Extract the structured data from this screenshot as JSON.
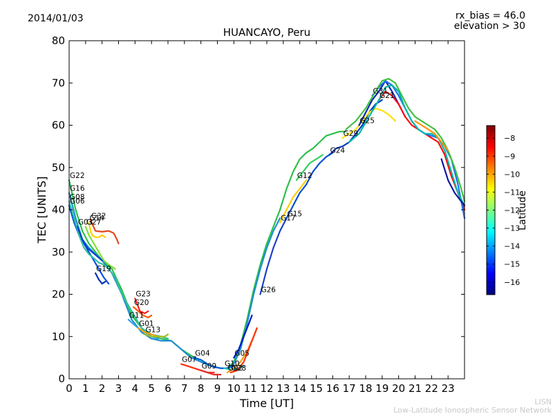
{
  "header": {
    "date": "2014/01/03",
    "params": [
      "rx_bias = 46.0",
      "elevation > 30"
    ]
  },
  "footer": {
    "watermark_short": "LISN",
    "watermark_long": "Low-Latitude Ionospheric Sensor Network"
  },
  "chart_data": {
    "type": "line",
    "title": "HUANCAYO, Peru",
    "xlabel": "Time [UT]",
    "ylabel": "TEC [UNITS]",
    "xlim": [
      0,
      24
    ],
    "ylim": [
      0,
      80
    ],
    "xticks": [
      0,
      1,
      2,
      3,
      4,
      5,
      6,
      7,
      8,
      9,
      10,
      11,
      12,
      13,
      14,
      15,
      16,
      17,
      18,
      19,
      20,
      21,
      22,
      23
    ],
    "yticks": [
      0,
      10,
      20,
      30,
      40,
      50,
      60,
      70,
      80
    ],
    "grid": false,
    "colorbar": {
      "label": "Latitude",
      "range": [
        -16.7,
        -7.3
      ],
      "ticks": [
        -8,
        -9,
        -10,
        -11,
        -12,
        -13,
        -14,
        -15,
        -16
      ],
      "colormap": [
        "#00007f",
        "#0000ff",
        "#007fff",
        "#00ffff",
        "#7fff7f",
        "#ffff00",
        "#ff7f00",
        "#ff0000",
        "#7f0000"
      ]
    },
    "series": [
      {
        "name": "G22",
        "color": "#2bbf4a",
        "x": [
          0.0,
          0.4,
          0.8,
          1.2,
          1.6,
          2.0,
          2.6,
          3.2,
          3.8,
          4.4,
          5.0,
          5.6,
          6.2,
          6.8,
          7.4,
          8.0,
          8.6,
          9.2,
          9.6,
          10.0,
          10.4,
          10.8,
          11.2,
          11.6,
          12.0,
          12.4,
          12.8,
          13.2,
          13.6,
          14.0,
          14.4,
          14.8,
          15.2,
          15.6,
          16.0,
          16.4,
          16.8
        ],
        "y": [
          47,
          40,
          35,
          32,
          30,
          28,
          26,
          21,
          15,
          12,
          10,
          9.5,
          9,
          7,
          5.5,
          4,
          3,
          2.5,
          2.5,
          4,
          8,
          14,
          21,
          27,
          32,
          36,
          40,
          45,
          49,
          52,
          53.5,
          54.5,
          56,
          57.5,
          58,
          58.5,
          58.5
        ]
      },
      {
        "name": "G16",
        "color": "#1f8fd0",
        "x": [
          0.0,
          0.4,
          0.8,
          1.2,
          1.6,
          2.0,
          2.6,
          3.2,
          3.8,
          4.4,
          5.0,
          5.6,
          6.2,
          6.8,
          7.4,
          8.0,
          8.6,
          9.2,
          9.6,
          10.0,
          10.4,
          10.8,
          11.2,
          11.6,
          12.0,
          12.4,
          12.8
        ],
        "y": [
          44,
          38,
          33,
          31,
          29.5,
          28,
          25,
          20,
          14,
          11,
          9.5,
          9,
          9,
          7,
          5,
          4,
          3,
          2.5,
          2.5,
          3.5,
          7,
          13,
          20,
          26,
          31,
          35,
          38
        ]
      },
      {
        "name": "G06",
        "color": "#0050e0",
        "x": [
          0.0,
          0.3,
          0.6,
          0.9,
          1.2,
          1.5,
          1.8,
          2.1,
          2.4
        ],
        "y": [
          41,
          37,
          34,
          32,
          30,
          28,
          26,
          24,
          22.5
        ]
      },
      {
        "name": "G08",
        "color": "#30c0a0",
        "x": [
          0.0,
          0.3,
          0.6,
          0.9,
          1.2,
          1.5,
          1.8,
          2.1,
          2.4,
          2.8,
          3.2,
          3.8,
          4.4,
          5.0,
          5.6,
          6.0
        ],
        "y": [
          42,
          38,
          34,
          31,
          29.5,
          28.5,
          27.5,
          27,
          26,
          24,
          20,
          16,
          12,
          10.5,
          10,
          9.5
        ]
      },
      {
        "name": "G27",
        "color": "#7de035",
        "x": [
          1.0,
          1.2,
          1.5,
          1.8,
          2.1,
          2.4,
          2.8
        ],
        "y": [
          36,
          34,
          32,
          30,
          28,
          27,
          26
        ]
      },
      {
        "name": "G14",
        "color": "#ffd000",
        "x": [
          1.2,
          1.3,
          1.4,
          1.6,
          1.8,
          2.0,
          2.2
        ],
        "y": [
          37,
          35,
          34,
          33.5,
          33.5,
          34,
          33.5
        ]
      },
      {
        "name": "G32",
        "color": "#e04a1f",
        "x": [
          1.3,
          1.6,
          2.0,
          2.4,
          2.7,
          2.9,
          3.0
        ],
        "y": [
          37.5,
          35,
          34.8,
          35,
          34.5,
          33,
          32
        ]
      },
      {
        "name": "G03",
        "color": "#0040d0",
        "x": [
          0.5,
          0.8,
          1.1,
          1.4,
          1.7,
          2.0
        ],
        "y": [
          36,
          33,
          31,
          30,
          29,
          28
        ]
      },
      {
        "name": "G19",
        "color": "#0030b0",
        "x": [
          1.6,
          1.8,
          2.0,
          2.2
        ],
        "y": [
          25,
          23.5,
          22.5,
          23
        ]
      },
      {
        "name": "G20",
        "color": "#ff5a00",
        "x": [
          3.9,
          4.2,
          4.5,
          4.8,
          5.0
        ],
        "y": [
          17,
          16,
          15,
          14.5,
          15
        ]
      },
      {
        "name": "G11",
        "color": "#2ea0e0",
        "x": [
          3.6,
          3.9,
          4.2,
          4.6,
          5.0,
          5.4
        ],
        "y": [
          14,
          13,
          12,
          11,
          10,
          9.5
        ]
      },
      {
        "name": "G23",
        "color": "#ff1a1a",
        "x": [
          4.0,
          4.3,
          4.6,
          4.8
        ],
        "y": [
          19,
          16,
          15.5,
          16
        ]
      },
      {
        "name": "G01",
        "color": "#ffa000",
        "x": [
          4.2,
          4.6,
          5.0,
          5.4,
          5.8
        ],
        "y": [
          12,
          11,
          10.5,
          10,
          10
        ]
      },
      {
        "name": "G13",
        "color": "#a0c020",
        "x": [
          4.6,
          5.0,
          5.4,
          5.8,
          6.0
        ],
        "y": [
          10.5,
          10,
          10,
          10,
          10.5
        ]
      },
      {
        "name": "G07",
        "color": "#ff2a10",
        "x": [
          6.8,
          7.2,
          7.6,
          8.0,
          8.4,
          8.8
        ],
        "y": [
          3.5,
          3,
          2.5,
          2,
          1.5,
          1.5
        ]
      },
      {
        "name": "G04",
        "color": "#0060d8",
        "x": [
          7.6,
          8.0,
          8.4,
          8.8,
          9.2,
          9.6,
          10.0
        ],
        "y": [
          5,
          4.5,
          3.5,
          2.8,
          2.5,
          2.5,
          3
        ]
      },
      {
        "name": "G09",
        "color": "#e02a2a",
        "x": [
          8.0,
          8.4,
          8.8,
          9.2
        ],
        "y": [
          2,
          1.5,
          1,
          1
        ]
      },
      {
        "name": "G05",
        "color": "#0018c8",
        "x": [
          10.0,
          10.3,
          10.6,
          10.9,
          11.1
        ],
        "y": [
          5,
          7,
          10,
          13,
          15
        ]
      },
      {
        "name": "G10",
        "color": "#20c0c0",
        "x": [
          9.4,
          9.8,
          10.2,
          10.6
        ],
        "y": [
          2.5,
          2.2,
          2.5,
          3
        ]
      },
      {
        "name": "G02",
        "color": "#f0a010",
        "x": [
          9.6,
          10.0,
          10.4,
          10.8,
          11.2,
          11.4
        ],
        "y": [
          1.5,
          2.5,
          4,
          6.5,
          10,
          12
        ]
      },
      {
        "name": "G28",
        "color": "#ff3000",
        "x": [
          9.8,
          10.2,
          10.6,
          11.0,
          11.4
        ],
        "y": [
          1.5,
          2,
          4,
          8,
          12
        ]
      },
      {
        "name": "G26",
        "color": "#1a40c8",
        "x": [
          11.6,
          12.0,
          12.4,
          12.8,
          13.2
        ],
        "y": [
          20,
          26,
          31,
          35,
          38
        ]
      },
      {
        "name": "G17",
        "color": "#ffcc00",
        "x": [
          12.8,
          13.2,
          13.6,
          14.0,
          14.4
        ],
        "y": [
          37,
          40,
          43,
          45,
          47
        ]
      },
      {
        "name": "G15",
        "color": "#0050d0",
        "x": [
          13.2,
          13.6,
          14.0,
          14.4,
          14.8,
          15.2,
          15.6,
          16.0
        ],
        "y": [
          38,
          41,
          44,
          46,
          49,
          51,
          52.5,
          53.5
        ]
      },
      {
        "name": "G12",
        "color": "#30d060",
        "x": [
          13.8,
          14.2,
          14.6,
          15.0,
          15.4
        ],
        "y": [
          47,
          49,
          51,
          52,
          53
        ]
      },
      {
        "name": "G24",
        "color": "#0038c0",
        "x": [
          15.8,
          16.2,
          16.6,
          17.0,
          17.4,
          17.8,
          18.2,
          18.6,
          19.0
        ],
        "y": [
          53,
          54.5,
          55,
          56,
          58,
          60,
          63,
          65,
          66
        ]
      },
      {
        "name": "G29",
        "color": "#ffe000",
        "x": [
          16.6,
          17.0,
          17.4,
          17.8,
          18.2,
          18.6,
          19.0,
          19.4,
          19.8
        ],
        "y": [
          57,
          58,
          59,
          61,
          63,
          64,
          63.5,
          62.5,
          61
        ]
      },
      {
        "name": "G25",
        "color": "#0a28b0",
        "x": [
          17.6,
          18.0,
          18.4,
          18.8,
          19.2,
          19.6,
          20.0,
          20.4
        ],
        "y": [
          60,
          63,
          66,
          68,
          70.5,
          68,
          65,
          62
        ]
      },
      {
        "name": "G21",
        "color": "#ff0a10",
        "x": [
          18.8,
          19.2,
          19.6,
          20.0,
          20.4,
          20.8,
          21.2,
          21.6,
          22.0,
          22.4,
          22.8,
          23.2,
          23.6,
          24.0
        ],
        "y": [
          66,
          68,
          67,
          65,
          62,
          60,
          59,
          58,
          57,
          56,
          53,
          48,
          44,
          40
        ]
      },
      {
        "name": "G31",
        "color": "#2070f0",
        "x": [
          18.4,
          18.8,
          19.2,
          19.6,
          20.0,
          20.4,
          20.8,
          21.2,
          21.6,
          22.0,
          22.4,
          22.8,
          23.2,
          23.6,
          24.0
        ],
        "y": [
          67,
          69,
          70.5,
          69.5,
          67,
          64,
          61,
          59,
          58,
          57.5,
          57,
          55,
          52,
          46,
          38
        ]
      },
      {
        "name": "",
        "color": "#40c040",
        "x": [
          16.8,
          17.4,
          18.0,
          18.6,
          19.0,
          19.4,
          19.8,
          20.2,
          20.6,
          21.0,
          21.4,
          21.8,
          22.2,
          22.6,
          23.0,
          23.4,
          23.8,
          24.0
        ],
        "y": [
          59,
          61,
          64,
          68,
          70.5,
          71,
          70,
          67,
          64,
          62,
          61,
          60,
          59,
          57,
          54,
          50,
          45,
          42
        ]
      },
      {
        "name": "",
        "color": "#00b8a8",
        "x": [
          17.0,
          17.6,
          18.2,
          18.8,
          19.2,
          19.6,
          20.0,
          20.4,
          20.8,
          21.2,
          21.6,
          22.0,
          22.4,
          22.8,
          23.2,
          23.6,
          24.0
        ],
        "y": [
          56,
          58,
          62,
          66,
          69,
          69.5,
          68,
          64,
          61,
          59,
          58,
          58,
          57,
          54,
          49,
          44,
          41
        ]
      },
      {
        "name": "",
        "color": "#ff9000",
        "x": [
          21.0,
          21.4,
          21.8,
          22.2,
          22.6,
          23.0
        ],
        "y": [
          61,
          60,
          59,
          58,
          56,
          54
        ]
      },
      {
        "name": "",
        "color": "#0a1aa0",
        "x": [
          22.6,
          23.0,
          23.4,
          23.8,
          24.0
        ],
        "y": [
          52,
          47,
          44,
          42,
          41
        ]
      }
    ]
  }
}
